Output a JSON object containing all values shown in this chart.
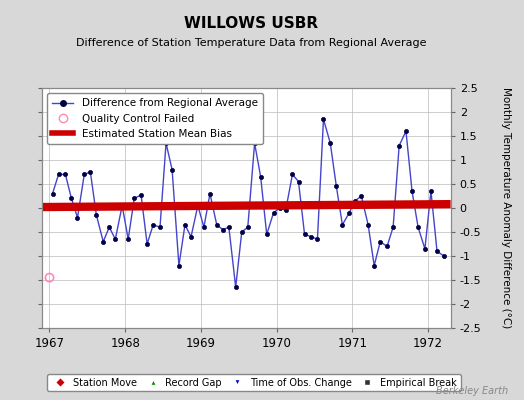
{
  "title": "WILLOWS USBR",
  "subtitle": "Difference of Station Temperature Data from Regional Average",
  "ylabel": "Monthly Temperature Anomaly Difference (°C)",
  "xlim": [
    1966.9,
    1972.3
  ],
  "ylim": [
    -2.5,
    2.5
  ],
  "yticks": [
    -2.5,
    -2,
    -1.5,
    -1,
    -0.5,
    0,
    0.5,
    1,
    1.5,
    2,
    2.5
  ],
  "xticks": [
    1967,
    1968,
    1969,
    1970,
    1971,
    1972
  ],
  "bias_value": 0.05,
  "background_color": "#d8d8d8",
  "plot_bg_color": "#ffffff",
  "line_color": "#4444cc",
  "marker_color": "#000044",
  "bias_color": "#cc0000",
  "qc_fail_x": [
    1967.0
  ],
  "qc_fail_y": [
    -1.45
  ],
  "watermark": "Berkeley Earth",
  "times": [
    1967.04,
    1967.12,
    1967.21,
    1967.29,
    1967.37,
    1967.46,
    1967.54,
    1967.62,
    1967.71,
    1967.79,
    1967.87,
    1967.96,
    1968.04,
    1968.12,
    1968.21,
    1968.29,
    1968.37,
    1968.46,
    1968.54,
    1968.62,
    1968.71,
    1968.79,
    1968.87,
    1968.96,
    1969.04,
    1969.12,
    1969.21,
    1969.29,
    1969.37,
    1969.46,
    1969.54,
    1969.62,
    1969.71,
    1969.79,
    1969.87,
    1969.96,
    1970.04,
    1970.12,
    1970.21,
    1970.29,
    1970.37,
    1970.46,
    1970.54,
    1970.62,
    1970.71,
    1970.79,
    1970.87,
    1970.96,
    1971.04,
    1971.12,
    1971.21,
    1971.29,
    1971.37,
    1971.46,
    1971.54,
    1971.62,
    1971.71,
    1971.79,
    1971.87,
    1971.96,
    1972.04,
    1972.12,
    1972.21
  ],
  "values": [
    0.3,
    0.7,
    0.7,
    0.2,
    -0.2,
    0.7,
    0.75,
    -0.15,
    -0.7,
    -0.4,
    -0.65,
    0.05,
    -0.65,
    0.2,
    0.27,
    -0.75,
    -0.35,
    -0.4,
    1.35,
    0.8,
    -1.2,
    -0.35,
    -0.6,
    0.05,
    -0.4,
    0.3,
    -0.35,
    -0.45,
    -0.4,
    -1.65,
    -0.5,
    -0.4,
    1.35,
    0.65,
    -0.55,
    -0.1,
    0.0,
    -0.05,
    0.7,
    0.55,
    -0.55,
    -0.6,
    -0.65,
    1.85,
    1.35,
    0.45,
    -0.35,
    -0.1,
    0.15,
    0.25,
    -0.35,
    -1.2,
    -0.7,
    -0.8,
    -0.4,
    1.3,
    1.6,
    0.35,
    -0.4,
    -0.85,
    0.35,
    -0.9,
    -1.0
  ],
  "legend1_fontsize": 7.5,
  "legend2_fontsize": 7.0,
  "title_fontsize": 11,
  "subtitle_fontsize": 8
}
